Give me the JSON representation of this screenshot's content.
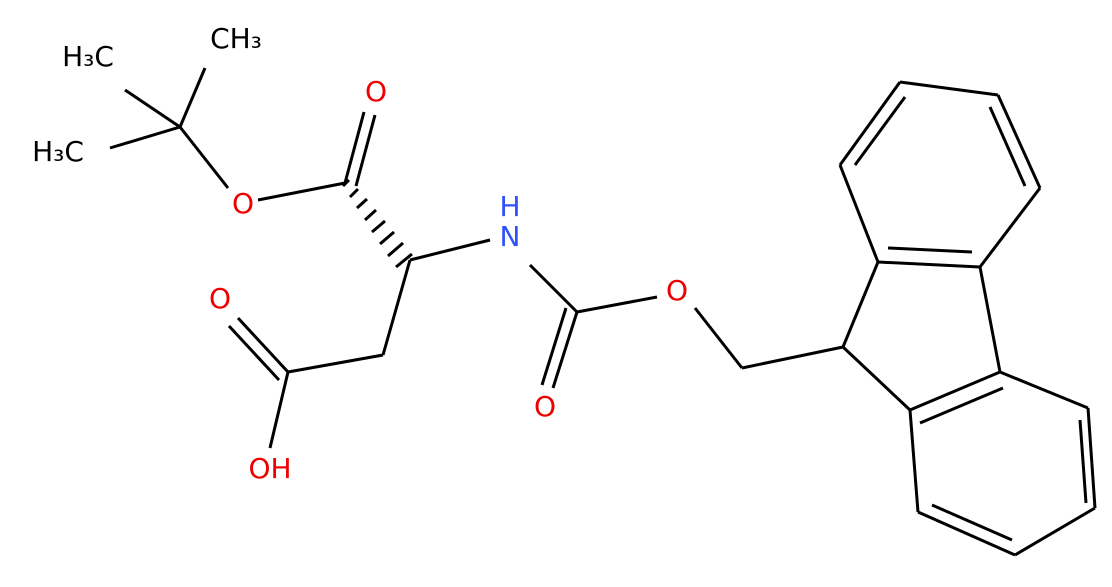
{
  "nodes": [
    {
      "label": "H₃C"
    },
    {
      "label": "CH₃"
    },
    {
      "label": "H₃C"
    },
    {
      "label": "O"
    },
    {
      "label": "O"
    },
    {
      "label": "H"
    },
    {
      "label": "N"
    },
    {
      "label": "O"
    },
    {
      "label": "OH"
    },
    {
      "label": "O"
    },
    {
      "label": "O"
    }
  ]
}
